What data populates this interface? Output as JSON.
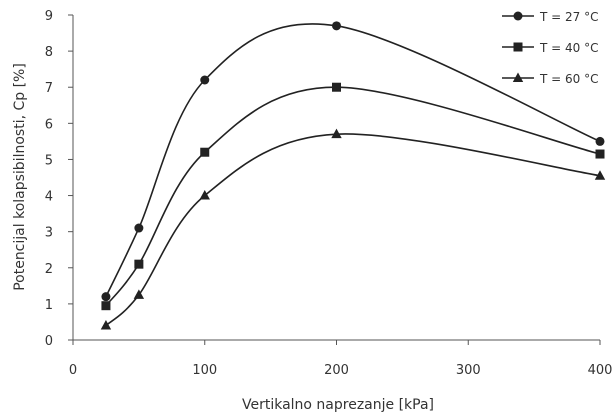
{
  "chart_data": {
    "type": "line",
    "title": "",
    "xlabel": "Vertikalno naprezanje [kPa]",
    "ylabel": "Potencijal kolapsibilnosti, Cp [%]",
    "xlim": [
      0,
      400
    ],
    "ylim": [
      0,
      9
    ],
    "xticks": [
      "0",
      "100",
      "200",
      "300",
      "400"
    ],
    "yticks": [
      "0",
      "1",
      "2",
      "3",
      "4",
      "5",
      "6",
      "7",
      "8",
      "9"
    ],
    "grid": false,
    "smooth": true,
    "legend_position": "top-right",
    "series": [
      {
        "name": "T = 27 °C",
        "marker": "circle",
        "color": "#222222",
        "x": [
          25,
          50,
          100,
          200,
          400
        ],
        "y": [
          1.2,
          3.1,
          7.2,
          8.7,
          5.5
        ]
      },
      {
        "name": "T = 40 °C",
        "marker": "square",
        "color": "#222222",
        "x": [
          25,
          50,
          100,
          200,
          400
        ],
        "y": [
          0.95,
          2.1,
          5.2,
          7.0,
          5.15
        ]
      },
      {
        "name": "T = 60 °C",
        "marker": "triangle",
        "color": "#222222",
        "x": [
          25,
          50,
          100,
          200,
          400
        ],
        "y": [
          0.4,
          1.25,
          4.0,
          5.7,
          4.55
        ]
      }
    ]
  }
}
